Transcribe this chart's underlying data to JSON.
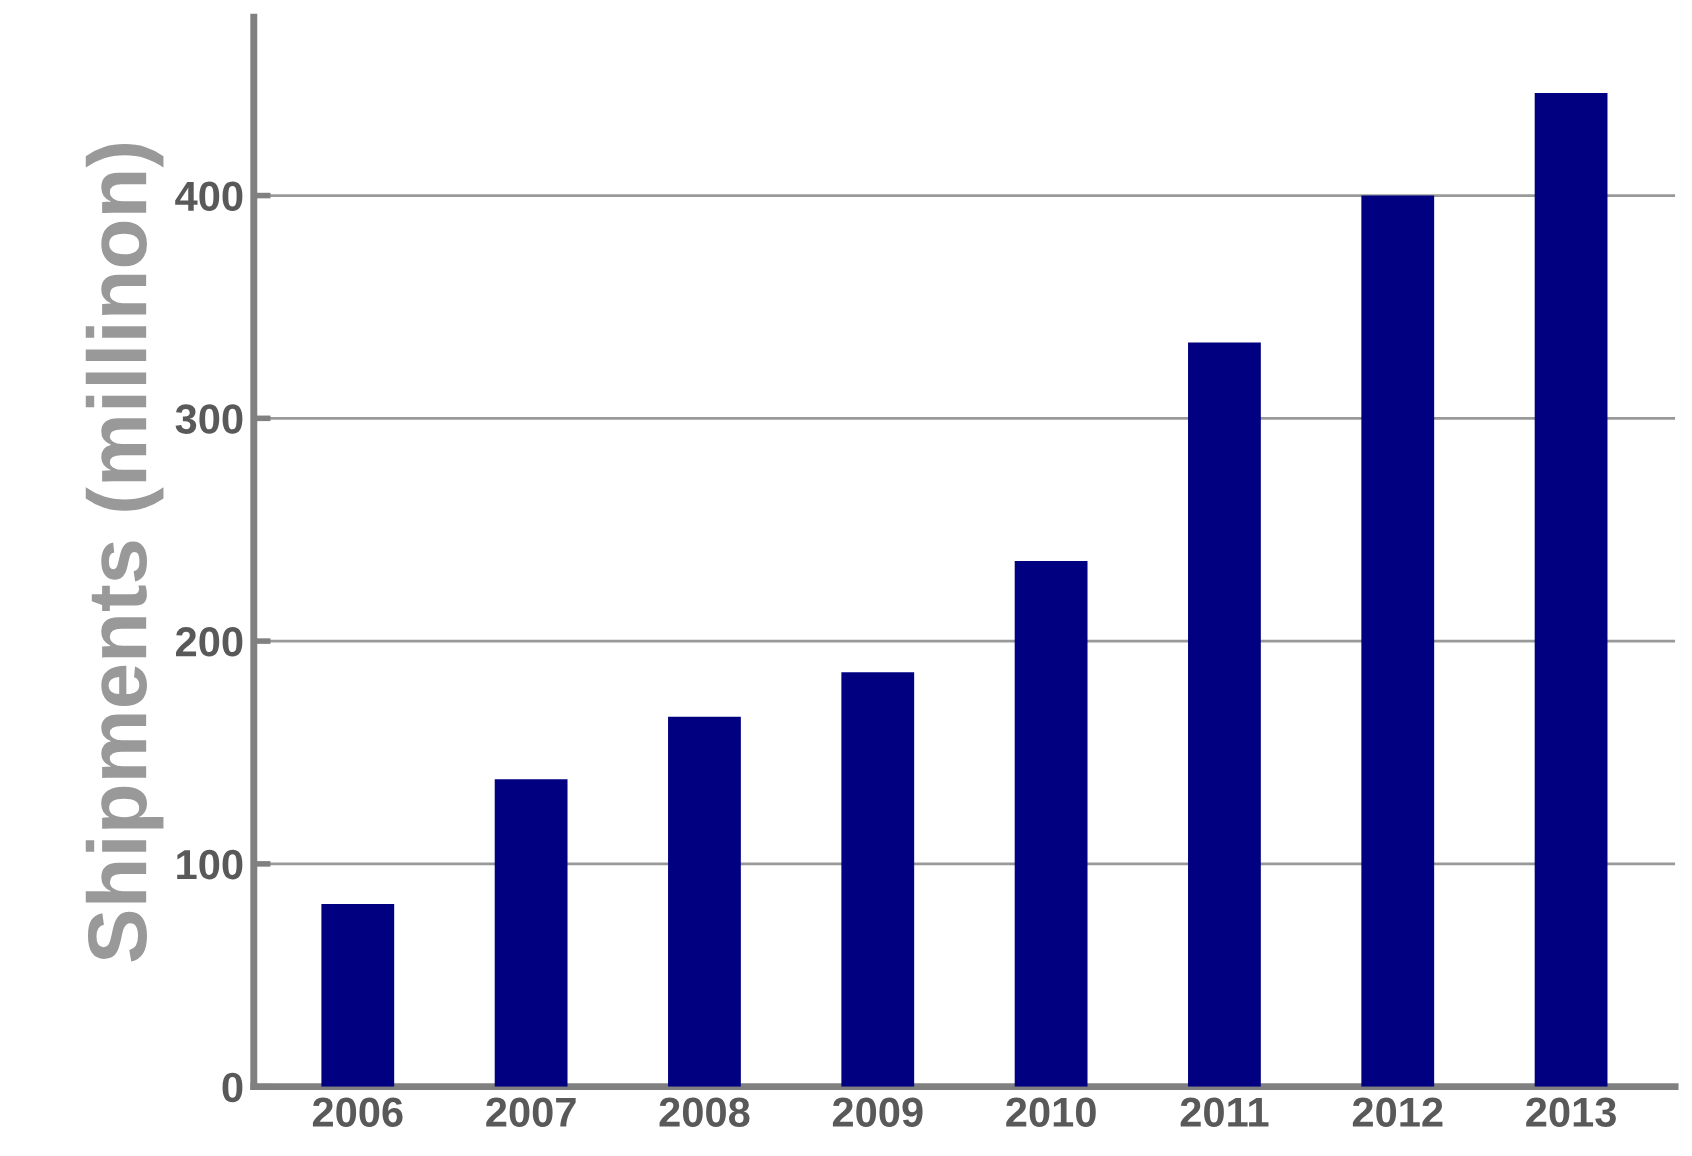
{
  "chart_data": {
    "type": "bar",
    "ylabel": "Shipments (millinon)",
    "categories": [
      "2006",
      "2007",
      "2008",
      "2009",
      "2010",
      "2011",
      "2012",
      "2013"
    ],
    "values": [
      82,
      138,
      166,
      186,
      236,
      334,
      400,
      446
    ],
    "color": "#000080",
    "ylim": [
      0,
      480
    ],
    "yticks": [
      0,
      100,
      200,
      300,
      400
    ],
    "grid": "y"
  }
}
